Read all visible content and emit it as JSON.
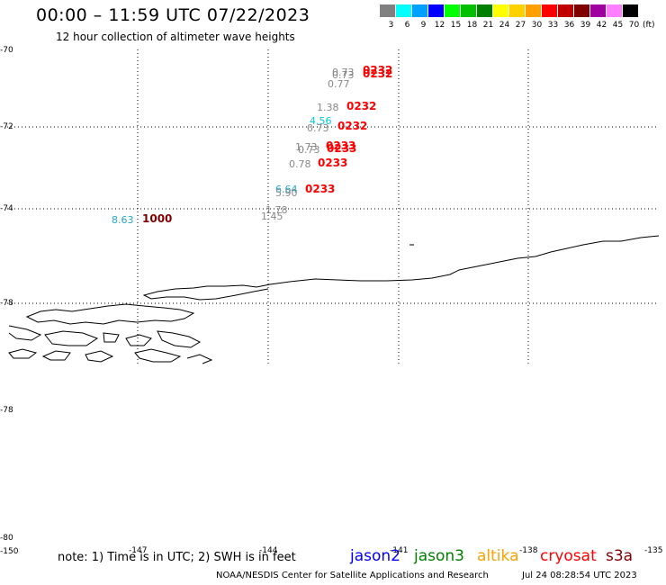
{
  "header": {
    "title": "00:00 – 11:59 UTC 07/22/2023",
    "subtitle": "12 hour collection of altimeter wave heights"
  },
  "color_scale": {
    "unit": "(ft)",
    "bins": [
      {
        "label": "3",
        "color": "#808080"
      },
      {
        "label": "6",
        "color": "#00ffff"
      },
      {
        "label": "9",
        "color": "#00a0ff"
      },
      {
        "label": "12",
        "color": "#0000ff"
      },
      {
        "label": "15",
        "color": "#00ff00"
      },
      {
        "label": "18",
        "color": "#00c000"
      },
      {
        "label": "21",
        "color": "#008000"
      },
      {
        "label": "24",
        "color": "#ffff00"
      },
      {
        "label": "27",
        "color": "#ffd000"
      },
      {
        "label": "30",
        "color": "#ffa000"
      },
      {
        "label": "33",
        "color": "#ff0000"
      },
      {
        "label": "36",
        "color": "#c00000"
      },
      {
        "label": "39",
        "color": "#800000"
      },
      {
        "label": "42",
        "color": "#a000a0"
      },
      {
        "label": "45",
        "color": "#ff80ff"
      },
      {
        "label": "70",
        "color": "#000000"
      }
    ]
  },
  "axes": {
    "lat_labels": [
      "-70",
      "-72",
      "-74",
      "-78",
      "-78",
      "-80"
    ],
    "lon_labels": [
      "-150",
      "-147",
      "-144",
      "-141",
      "-138",
      "-135"
    ]
  },
  "observations": [
    {
      "value": "0.73",
      "color": "#888888"
    },
    {
      "value": "0.73",
      "color": "#888888"
    },
    {
      "value": "0.77",
      "color": "#888888"
    },
    {
      "value": "1.38",
      "color": "#888888"
    },
    {
      "value": "4.56",
      "color": "#00c8dc"
    },
    {
      "value": "0.73",
      "color": "#888888"
    },
    {
      "value": "1.73",
      "color": "#888888"
    },
    {
      "value": "0.73",
      "color": "#888888"
    },
    {
      "value": "0.78",
      "color": "#888888"
    },
    {
      "value": "6.64",
      "color": "#20a8c8"
    },
    {
      "value": "5.90",
      "color": "#888888"
    },
    {
      "value": "1.78",
      "color": "#888888"
    },
    {
      "value": "1.45",
      "color": "#888888"
    },
    {
      "value": "8.63",
      "color": "#20a8c8"
    }
  ],
  "times": [
    {
      "value": "0232",
      "color": "#ff0000"
    },
    {
      "value": "0232",
      "color": "#ff0000"
    },
    {
      "value": "0232",
      "color": "#ff0000"
    },
    {
      "value": "0232",
      "color": "#ff0000"
    },
    {
      "value": "0233",
      "color": "#ff0000"
    },
    {
      "value": "0233",
      "color": "#ff0000"
    },
    {
      "value": "0233",
      "color": "#ff0000"
    },
    {
      "value": "0233",
      "color": "#ff0000"
    },
    {
      "value": "1000",
      "color": "#800000"
    }
  ],
  "footer": {
    "note": "note: 1) Time is in UTC; 2) SWH is in feet",
    "satellites": [
      {
        "name": "jason2",
        "color": "#0000ff"
      },
      {
        "name": "jason3",
        "color": "#008000"
      },
      {
        "name": "altika",
        "color": "#ffa000"
      },
      {
        "name": "cryosat",
        "color": "#ff0000"
      },
      {
        "name": "s3a",
        "color": "#800000"
      }
    ],
    "credit": "NOAA/NESDIS Center for Satellite Applications and Research",
    "timestamp": "Jul 24 08:28:54 UTC 2023"
  }
}
